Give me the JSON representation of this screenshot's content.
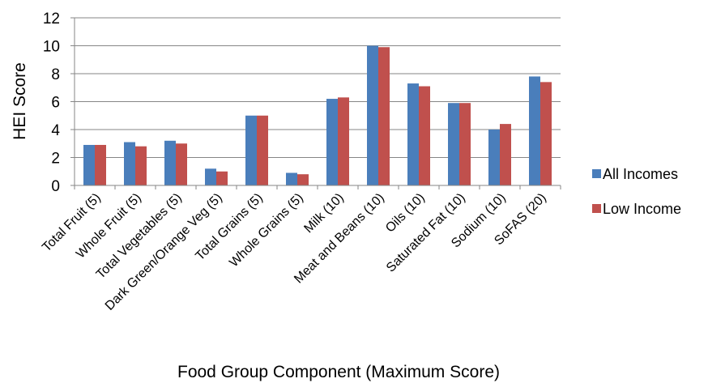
{
  "chart_data": {
    "type": "bar",
    "title": "",
    "xlabel": "Food Group Component (Maximum Score)",
    "ylabel": "HEI Score",
    "ylim": [
      0,
      12
    ],
    "yticks": [
      0,
      2,
      4,
      6,
      8,
      10,
      12
    ],
    "grid": true,
    "legend_position": "right",
    "categories": [
      "Total Fruit (5)",
      "Whole Fruit (5)",
      "Total Vegetables (5)",
      "Dark Green/Orange Veg (5)",
      "Total Grains (5)",
      "Whole Grains (5)",
      "Milk (10)",
      "Meat and Beans (10)",
      "Oils (10)",
      "Saturated Fat (10)",
      "Sodium (10)",
      "SoFAS (20)"
    ],
    "series": [
      {
        "name": "All Incomes",
        "color": "#4a7ebb",
        "values": [
          2.9,
          3.1,
          3.2,
          1.2,
          5.0,
          0.9,
          6.2,
          10.0,
          7.3,
          5.9,
          4.0,
          7.8
        ]
      },
      {
        "name": "Low Income",
        "color": "#c0504d",
        "values": [
          2.9,
          2.8,
          3.0,
          1.0,
          5.0,
          0.8,
          6.3,
          9.9,
          7.1,
          5.9,
          4.4,
          7.4
        ]
      }
    ]
  }
}
